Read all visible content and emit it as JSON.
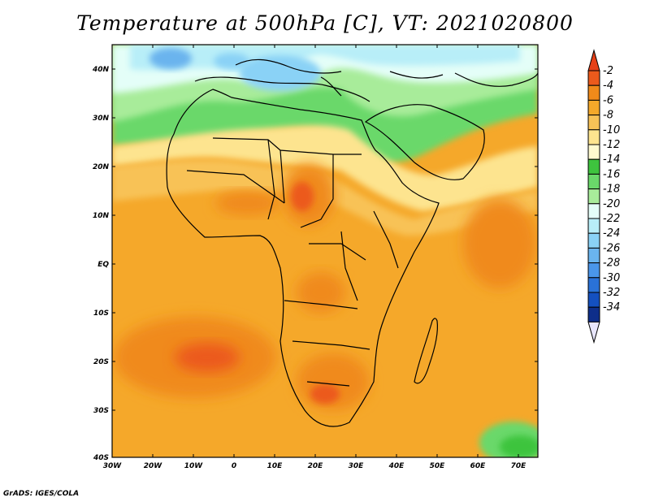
{
  "title": "Temperature at 500hPa [C], VT: 2021020800",
  "footer": "GrADS: IGES/COLA",
  "map": {
    "lon_range": [
      -30,
      76
    ],
    "lat_range": [
      -40,
      46
    ],
    "lon_ticks": [
      "30W",
      "20W",
      "10W",
      "0",
      "10E",
      "20E",
      "30E",
      "40E",
      "50E",
      "60E",
      "70E"
    ],
    "lat_ticks": [
      "40N",
      "30N",
      "20N",
      "10N",
      "EQ",
      "10S",
      "20S",
      "30S",
      "40S"
    ]
  },
  "colorbar": {
    "labels": [
      "-2",
      "-4",
      "-6",
      "-8",
      "-10",
      "-12",
      "-14",
      "-16",
      "-18",
      "-20",
      "-22",
      "-24",
      "-26",
      "-28",
      "-30",
      "-32",
      "-34"
    ],
    "colors": [
      "#ec5a1c",
      "#f08a1a",
      "#f5a82a",
      "#f8c257",
      "#fde48f",
      "#fefad0",
      "#3ec43e",
      "#6ad86a",
      "#a8ec9a",
      "#e4fef8",
      "#b8eef8",
      "#8ad2f6",
      "#6ab4ee",
      "#4a96ea",
      "#2a72d8",
      "#1450c0",
      "#0e2e8a"
    ],
    "top_triangle": "#e64018",
    "bottom_triangle": "#e8e6fc"
  }
}
